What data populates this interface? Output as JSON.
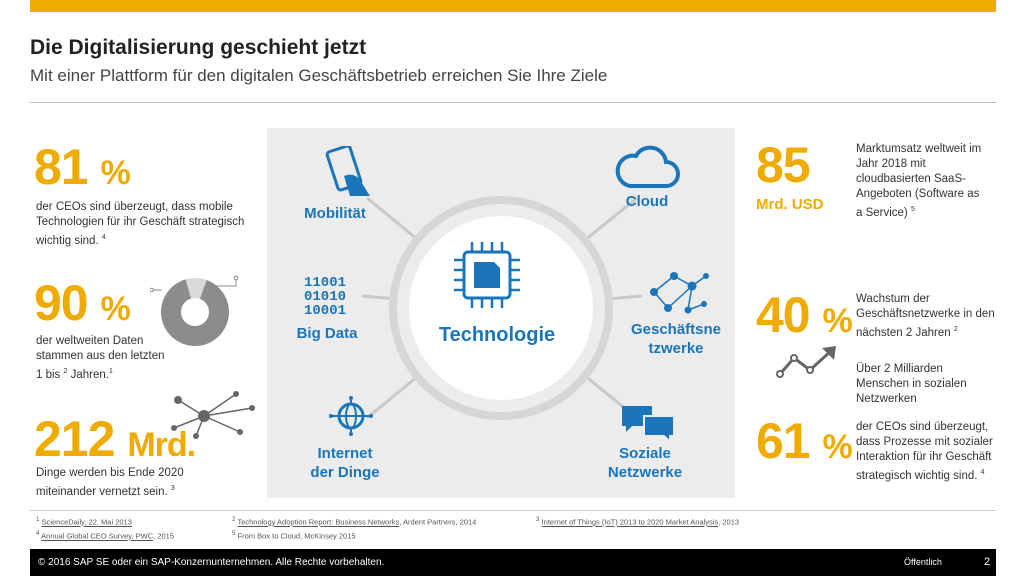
{
  "header": {
    "title": "Die Digitalisierung geschieht jetzt",
    "subtitle": "Mit einer Plattform für den digitalen Geschäftsbetrieb erreichen Sie Ihre Ziele"
  },
  "colors": {
    "accent": "#f0ab00",
    "blue": "#1a75bb",
    "panel": "#ececec",
    "chart_gray": "#8c8c8c"
  },
  "left_stats": [
    {
      "number": "81",
      "unit": "%",
      "text": "der CEOs sind überzeugt, dass mobile Technologien für ihr Geschäft strategisch wichtig sind.",
      "ref": "4"
    },
    {
      "number": "90",
      "unit": "%",
      "text_a": "der weltweiten Daten stammen aus den letzten 1 bis",
      "text_sup": "2",
      "text_b": "Jahren.",
      "ref": "1"
    },
    {
      "number": "212",
      "unit": "Mrd.",
      "text": "Dinge werden bis Ende 2020 miteinander vernetzt sein.",
      "ref": "3"
    }
  ],
  "right_stats": [
    {
      "number": "85",
      "sublabel": "Mrd. USD",
      "text": "Marktumsatz weltweit im Jahr 2018 mit cloudbasierten SaaS-Angeboten (Software as a Service)",
      "ref": "5"
    },
    {
      "number": "40",
      "unit": "%",
      "text": "Wachstum der Geschäftsnetzwerke in den nächsten 2 Jahren",
      "ref": "2",
      "text2": "Über 2 Milliarden Menschen in sozialen Netzwerken"
    },
    {
      "number": "61",
      "unit": "%",
      "text": "der CEOs sind überzeugt, dass Prozesse mit sozialer Interaktion für ihr Geschäft strategisch wichtig sind.",
      "ref": "4"
    }
  ],
  "donut": {
    "share": 0.9
  },
  "hub": {
    "center": "Technologie",
    "nodes": {
      "mobility": "Mobilität",
      "cloud": "Cloud",
      "bigdata": "Big Data",
      "binary": [
        "11001",
        "01010",
        "10001"
      ],
      "business_networks_a": "Geschäftsne",
      "business_networks_b": "tzwerke",
      "iot_a": "Internet",
      "iot_b": "der Dinge",
      "social_a": "Soziale",
      "social_b": "Netzwerke"
    },
    "icons": [
      "smartphone-icon",
      "cloud-icon",
      "chip-icon",
      "network-icon",
      "globe-icon",
      "chat-bubbles-icon"
    ]
  },
  "footnotes": {
    "f1_num": "1",
    "f1": "ScienceDaily, 22. Mai 2013",
    "f2_num": "2",
    "f2_link": "Technology Adoption Report: Business Networks",
    "f2_rest": ", Ardent Partners, 2014",
    "f3_num": "3",
    "f3": "Internet of Things (IoT) 2013 to 2020 Market Analysis",
    "f3_rest": ", 2013",
    "f4_num": "4",
    "f4": "Annual Global CEO Survey, PWC",
    "f4_rest": ", 2015",
    "f5_num": "5",
    "f5": "From Box to Cloud, McKinsey 2015"
  },
  "footer": {
    "copyright": "© 2016 SAP SE oder ein SAP-Konzernunternehmen. Alle Rechte vorbehalten.",
    "classification": "Öffentlich",
    "page": "2"
  }
}
